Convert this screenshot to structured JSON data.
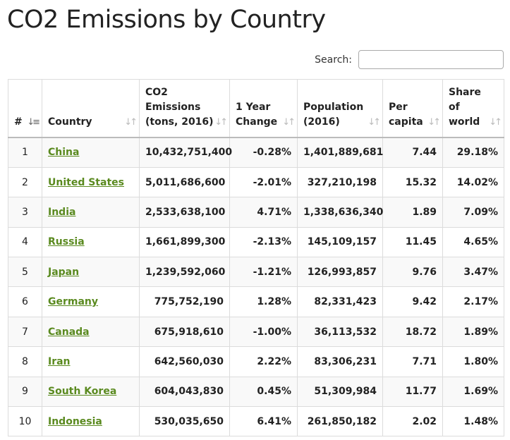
{
  "page": {
    "title": "CO2 Emissions by Country"
  },
  "search": {
    "label": "Search:",
    "value": "",
    "placeholder": ""
  },
  "table": {
    "columns": [
      {
        "label": "#",
        "sort_icon": "↓≡"
      },
      {
        "label": "Country",
        "sort_icon": "↓↑"
      },
      {
        "label": "CO2 Emissions (tons, 2016)",
        "sort_icon": "↓↑"
      },
      {
        "label": "1 Year Change",
        "sort_icon": "↓↑"
      },
      {
        "label": "Population (2016)",
        "sort_icon": "↓↑"
      },
      {
        "label": "Per capita",
        "sort_icon": "↓↑"
      },
      {
        "label": "Share of world",
        "sort_icon": "↓↑"
      }
    ],
    "rows": [
      {
        "rank": "1",
        "country": "China",
        "emissions": "10,432,751,400",
        "change": "-0.28%",
        "population": "1,401,889,681",
        "per_capita": "7.44",
        "share": "29.18%"
      },
      {
        "rank": "2",
        "country": "United States",
        "emissions": "5,011,686,600",
        "change": "-2.01%",
        "population": "327,210,198",
        "per_capita": "15.32",
        "share": "14.02%"
      },
      {
        "rank": "3",
        "country": "India",
        "emissions": "2,533,638,100",
        "change": "4.71%",
        "population": "1,338,636,340",
        "per_capita": "1.89",
        "share": "7.09%"
      },
      {
        "rank": "4",
        "country": "Russia",
        "emissions": "1,661,899,300",
        "change": "-2.13%",
        "population": "145,109,157",
        "per_capita": "11.45",
        "share": "4.65%"
      },
      {
        "rank": "5",
        "country": "Japan",
        "emissions": "1,239,592,060",
        "change": "-1.21%",
        "population": "126,993,857",
        "per_capita": "9.76",
        "share": "3.47%"
      },
      {
        "rank": "6",
        "country": "Germany",
        "emissions": "775,752,190",
        "change": "1.28%",
        "population": "82,331,423",
        "per_capita": "9.42",
        "share": "2.17%"
      },
      {
        "rank": "7",
        "country": "Canada",
        "emissions": "675,918,610",
        "change": "-1.00%",
        "population": "36,113,532",
        "per_capita": "18.72",
        "share": "1.89%"
      },
      {
        "rank": "8",
        "country": "Iran",
        "emissions": "642,560,030",
        "change": "2.22%",
        "population": "83,306,231",
        "per_capita": "7.71",
        "share": "1.80%"
      },
      {
        "rank": "9",
        "country": "South Korea",
        "emissions": "604,043,830",
        "change": "0.45%",
        "population": "51,309,984",
        "per_capita": "11.77",
        "share": "1.69%"
      },
      {
        "rank": "10",
        "country": "Indonesia",
        "emissions": "530,035,650",
        "change": "6.41%",
        "population": "261,850,182",
        "per_capita": "2.02",
        "share": "1.48%"
      }
    ]
  },
  "colors": {
    "link": "#5a8a1f",
    "stripe": "#f9f9f9",
    "border": "#dcdcdc"
  }
}
